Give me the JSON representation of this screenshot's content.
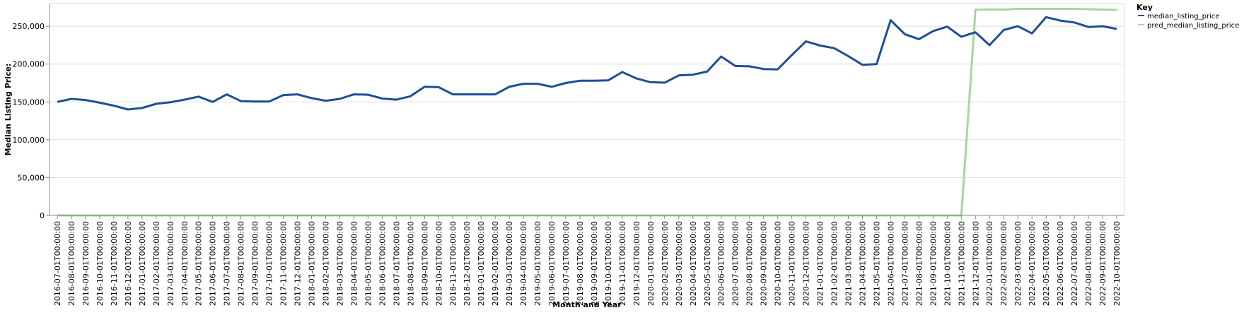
{
  "chart_data": {
    "type": "line",
    "xlabel": "Month and Year",
    "ylabel": "Median Listing Price:",
    "ylim": [
      0,
      280000
    ],
    "y_ticks": [
      0,
      50000,
      100000,
      150000,
      200000,
      250000
    ],
    "y_tick_labels": [
      "0",
      "50,000",
      "100,000",
      "150,000",
      "200,000",
      "250,000"
    ],
    "grid": true,
    "legend": {
      "title": "Key",
      "position": "top-right",
      "entries": [
        {
          "label": "median_listing_price",
          "color": "#1f4e96"
        },
        {
          "label": "pred_median_listing_price",
          "color": "#a5d89a"
        }
      ]
    },
    "x": [
      "2016-07-01T00:00:00",
      "2016-08-01T00:00:00",
      "2016-09-01T00:00:00",
      "2016-10-01T00:00:00",
      "2016-11-01T00:00:00",
      "2016-12-01T00:00:00",
      "2017-01-01T00:00:00",
      "2017-02-01T00:00:00",
      "2017-03-01T00:00:00",
      "2017-04-01T00:00:00",
      "2017-05-01T00:00:00",
      "2017-06-01T00:00:00",
      "2017-07-01T00:00:00",
      "2017-08-01T00:00:00",
      "2017-09-01T00:00:00",
      "2017-10-01T00:00:00",
      "2017-11-01T00:00:00",
      "2017-12-01T00:00:00",
      "2018-01-01T00:00:00",
      "2018-02-01T00:00:00",
      "2018-03-01T00:00:00",
      "2018-04-01T00:00:00",
      "2018-05-01T00:00:00",
      "2018-06-01T00:00:00",
      "2018-07-01T00:00:00",
      "2018-08-01T00:00:00",
      "2018-09-01T00:00:00",
      "2018-10-01T00:00:00",
      "2018-11-01T00:00:00",
      "2018-12-01T00:00:00",
      "2019-01-01T00:00:00",
      "2019-02-01T00:00:00",
      "2019-03-01T00:00:00",
      "2019-04-01T00:00:00",
      "2019-05-01T00:00:00",
      "2019-06-01T00:00:00",
      "2019-07-01T00:00:00",
      "2019-08-01T00:00:00",
      "2019-09-01T00:00:00",
      "2019-10-01T00:00:00",
      "2019-11-01T00:00:00",
      "2019-12-01T00:00:00",
      "2020-01-01T00:00:00",
      "2020-02-01T00:00:00",
      "2020-03-01T00:00:00",
      "2020-04-01T00:00:00",
      "2020-05-01T00:00:00",
      "2020-06-01T00:00:00",
      "2020-07-01T00:00:00",
      "2020-08-01T00:00:00",
      "2020-09-01T00:00:00",
      "2020-10-01T00:00:00",
      "2020-11-01T00:00:00",
      "2020-12-01T00:00:00",
      "2021-01-01T00:00:00",
      "2021-02-01T00:00:00",
      "2021-03-01T00:00:00",
      "2021-04-01T00:00:00",
      "2021-05-01T00:00:00",
      "2021-06-01T00:00:00",
      "2021-07-01T00:00:00",
      "2021-08-01T00:00:00",
      "2021-09-01T00:00:00",
      "2021-10-01T00:00:00",
      "2021-11-01T00:00:00",
      "2021-12-01T00:00:00",
      "2022-01-01T00:00:00",
      "2022-02-01T00:00:00",
      "2022-03-01T00:00:00",
      "2022-04-01T00:00:00",
      "2022-05-01T00:00:00",
      "2022-06-01T00:00:00",
      "2022-07-01T00:00:00",
      "2022-08-01T00:00:00",
      "2022-09-01T00:00:00",
      "2022-10-01T00:00:00"
    ],
    "series": [
      {
        "name": "median_listing_price",
        "color": "#1f4e96",
        "values": [
          150000,
          154000,
          152500,
          149000,
          145000,
          140000,
          142000,
          147500,
          149500,
          153000,
          157000,
          150000,
          160000,
          151000,
          150500,
          150500,
          159000,
          160000,
          155000,
          151500,
          154000,
          160000,
          159500,
          154500,
          153000,
          157500,
          170000,
          169500,
          160000,
          160000,
          160000,
          160000,
          170000,
          174000,
          174000,
          170000,
          175000,
          178000,
          178000,
          178500,
          189500,
          181000,
          176000,
          175500,
          185000,
          186000,
          190000,
          210000,
          197500,
          197000,
          193500,
          193000,
          212000,
          230000,
          224500,
          221000,
          210500,
          199000,
          200000,
          258000,
          239500,
          233000,
          243500,
          249500,
          236000,
          242000,
          225000,
          245000,
          250000,
          240500,
          262000,
          257500,
          255000,
          249000,
          250000,
          246500
        ]
      },
      {
        "name": "pred_median_listing_price",
        "color": "#a5d89a",
        "values": [
          0,
          0,
          0,
          0,
          0,
          0,
          0,
          0,
          0,
          0,
          0,
          0,
          0,
          0,
          0,
          0,
          0,
          0,
          0,
          0,
          0,
          0,
          0,
          0,
          0,
          0,
          0,
          0,
          0,
          0,
          0,
          0,
          0,
          0,
          0,
          0,
          0,
          0,
          0,
          0,
          0,
          0,
          0,
          0,
          0,
          0,
          0,
          0,
          0,
          0,
          0,
          0,
          0,
          0,
          0,
          0,
          0,
          0,
          0,
          0,
          0,
          0,
          0,
          0,
          0,
          272000,
          272000,
          272000,
          273000,
          273000,
          273000,
          273000,
          273000,
          272500,
          272000,
          271500
        ]
      }
    ]
  }
}
